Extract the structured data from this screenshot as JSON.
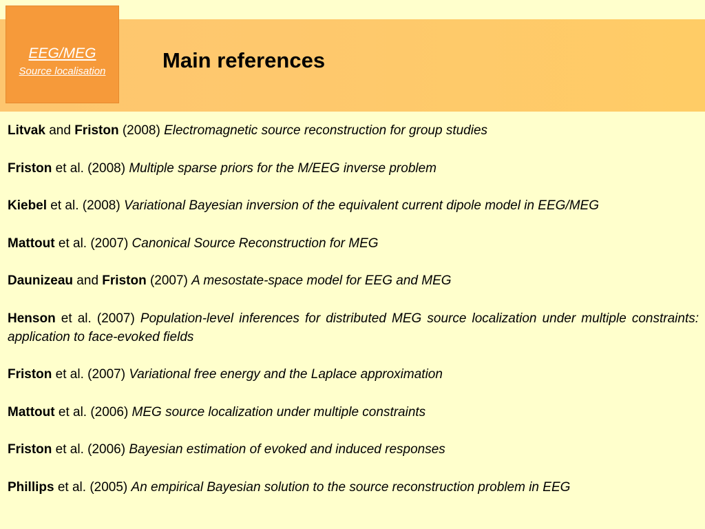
{
  "logo": {
    "title": "EEG/MEG",
    "subtitle": "Source localisation"
  },
  "title": "Main references",
  "references": [
    {
      "a1": "Litvak",
      "mid": " and ",
      "a2": "Friston",
      "rest": " (2008) ",
      "title": "Electromagnetic source reconstruction for group studies"
    },
    {
      "a1": "Friston",
      "mid": "",
      "a2": "",
      "rest": " et al. (2008) ",
      "title": "Multiple sparse priors for the M/EEG inverse problem"
    },
    {
      "a1": "Kiebel",
      "mid": "",
      "a2": "",
      "rest": " et al. (2008) ",
      "title": "Variational Bayesian inversion of the equivalent current dipole model in EEG/MEG"
    },
    {
      "a1": "Mattout",
      "mid": "",
      "a2": "",
      "rest": " et al. (2007) ",
      "title": "Canonical Source Reconstruction for MEG"
    },
    {
      "a1": "Daunizeau",
      "mid": " and ",
      "a2": "Friston",
      "rest": " (2007) ",
      "title": "A mesostate-space model for EEG and MEG"
    },
    {
      "a1": "Henson",
      "mid": "",
      "a2": "",
      "rest": " et al. (2007) ",
      "title": "Population-level inferences for distributed MEG source localization under multiple constraints: application to face-evoked fields"
    },
    {
      "a1": "Friston",
      "mid": "",
      "a2": "",
      "rest": " et al. (2007) ",
      "title": "Variational free energy and the Laplace approximation"
    },
    {
      "a1": "Mattout",
      "mid": "",
      "a2": "",
      "rest": " et al. (2006) ",
      "title": "MEG source localization under multiple constraints"
    },
    {
      "a1": "Friston",
      "mid": "",
      "a2": "",
      "rest": " et al. (2006) ",
      "title": "Bayesian estimation of evoked and induced responses"
    },
    {
      "a1": "Phillips",
      "mid": "",
      "a2": "",
      "rest": " et al. (2005) ",
      "title": "An empirical Bayesian solution to the source reconstruction problem in EEG"
    }
  ]
}
